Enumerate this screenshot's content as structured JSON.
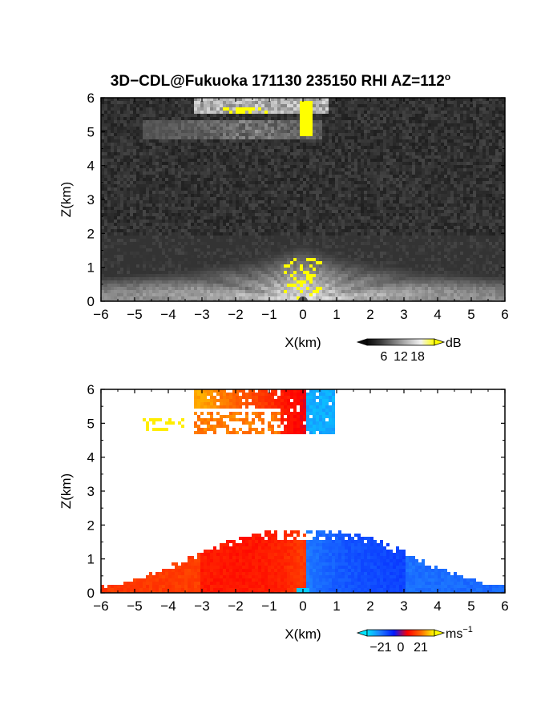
{
  "title": "3D−CDL@Fukuoka 171130 235150 RHI AZ=112",
  "title_sup": "o",
  "chart_data": [
    {
      "type": "heatmap",
      "panel": "top",
      "quantity": "reflectivity",
      "xlabel": "X(km)",
      "ylabel": "Z(km)",
      "xlim": [
        -6,
        6
      ],
      "ylim": [
        0,
        6
      ],
      "xticks": [
        "−6",
        "−5",
        "−4",
        "−3",
        "−2",
        "−1",
        "0",
        "1",
        "2",
        "3",
        "4",
        "5",
        "6"
      ],
      "yticks": [
        "0",
        "1",
        "2",
        "3",
        "4",
        "5",
        "6"
      ],
      "colormap": [
        "#0a0a0a",
        "#3a3a3a",
        "#7a7a7a",
        "#b8b8b8",
        "#f2f2f2",
        "#ffff00"
      ],
      "colorbar": {
        "ticks": [
          "6",
          "12",
          "18"
        ],
        "unit": "dB"
      },
      "features": [
        {
          "name": "near-ground echo fan",
          "x": [
            -6,
            6
          ],
          "z": [
            0,
            1.9
          ],
          "peak_db": 18
        },
        {
          "name": "upper cloud layer",
          "x": [
            -3.2,
            0.8
          ],
          "z": [
            5.6,
            6.0
          ],
          "peak_db": 18
        },
        {
          "name": "mid cloud layer",
          "x": [
            -4.8,
            0.5
          ],
          "z": [
            4.7,
            5.3
          ],
          "peak_db": 14
        },
        {
          "name": "yellow core above origin",
          "x": [
            -0.05,
            0.3
          ],
          "z": [
            4.9,
            5.9
          ],
          "peak_db": 20
        }
      ]
    },
    {
      "type": "heatmap",
      "panel": "bottom",
      "quantity": "Doppler velocity",
      "xlabel": "X(km)",
      "ylabel": "Z(km)",
      "xlim": [
        -6,
        6
      ],
      "ylim": [
        0,
        6
      ],
      "xticks": [
        "−6",
        "−5",
        "−4",
        "−3",
        "−2",
        "−1",
        "0",
        "1",
        "2",
        "3",
        "4",
        "5",
        "6"
      ],
      "yticks": [
        "0",
        "1",
        "2",
        "3",
        "4",
        "5",
        "6"
      ],
      "colormap": [
        "#00e5ff",
        "#1e7bff",
        "#0018ff",
        "#ff0000",
        "#ff6a00",
        "#ffff00"
      ],
      "colorbar": {
        "ticks": [
          "−21",
          "0",
          "21"
        ],
        "unit": "ms",
        "unit_sup": "−1"
      },
      "features": [
        {
          "name": "low-level approaching flow",
          "x": [
            -6,
            0.1
          ],
          "z": [
            0,
            1.8
          ],
          "velocity_ms": 10
        },
        {
          "name": "low-level receding flow",
          "x": [
            0.1,
            6
          ],
          "z": [
            0,
            1.7
          ],
          "velocity_ms": -15
        },
        {
          "name": "upper layer approaching",
          "x": [
            -3.2,
            0.1
          ],
          "z": [
            4.7,
            6.0
          ],
          "velocity_ms": 12
        },
        {
          "name": "upper layer receding",
          "x": [
            0.1,
            1.0
          ],
          "z": [
            4.7,
            6.0
          ],
          "velocity_ms": -18
        },
        {
          "name": "mid layer far echo",
          "x": [
            -4.8,
            -3.5
          ],
          "z": [
            4.7,
            5.1
          ],
          "velocity_ms": 21
        }
      ]
    }
  ]
}
